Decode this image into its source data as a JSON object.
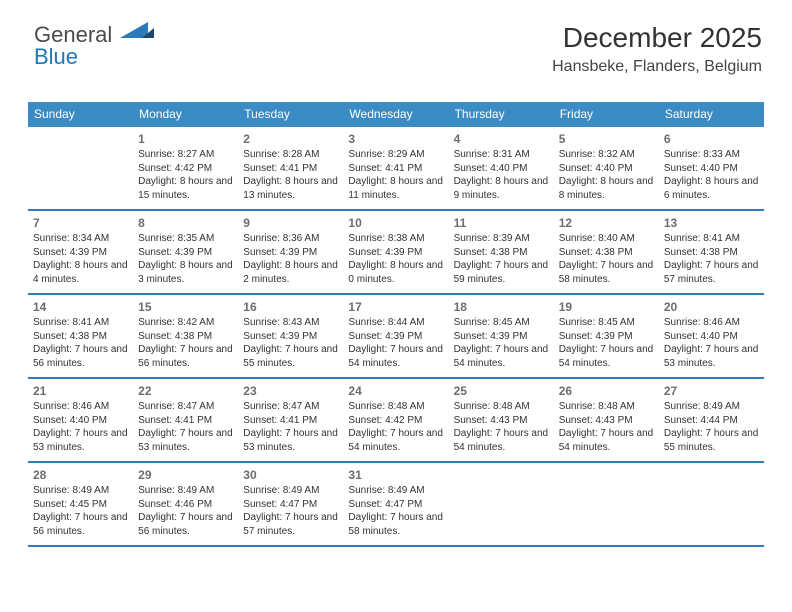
{
  "logo": {
    "part1": "General",
    "part2": "Blue"
  },
  "header": {
    "title": "December 2025",
    "location": "Hansbeke, Flanders, Belgium"
  },
  "colors": {
    "header_bg": "#3b8bc4",
    "header_text": "#ffffff",
    "row_border": "#2e7bb5",
    "daynum": "#6d6d6d",
    "body_text": "#333333",
    "logo_gray": "#5a5a5a",
    "logo_blue": "#2176b8"
  },
  "day_names": [
    "Sunday",
    "Monday",
    "Tuesday",
    "Wednesday",
    "Thursday",
    "Friday",
    "Saturday"
  ],
  "weeks": [
    [
      {
        "num": "",
        "sunrise": "",
        "sunset": "",
        "daylight": ""
      },
      {
        "num": "1",
        "sunrise": "Sunrise: 8:27 AM",
        "sunset": "Sunset: 4:42 PM",
        "daylight": "Daylight: 8 hours and 15 minutes."
      },
      {
        "num": "2",
        "sunrise": "Sunrise: 8:28 AM",
        "sunset": "Sunset: 4:41 PM",
        "daylight": "Daylight: 8 hours and 13 minutes."
      },
      {
        "num": "3",
        "sunrise": "Sunrise: 8:29 AM",
        "sunset": "Sunset: 4:41 PM",
        "daylight": "Daylight: 8 hours and 11 minutes."
      },
      {
        "num": "4",
        "sunrise": "Sunrise: 8:31 AM",
        "sunset": "Sunset: 4:40 PM",
        "daylight": "Daylight: 8 hours and 9 minutes."
      },
      {
        "num": "5",
        "sunrise": "Sunrise: 8:32 AM",
        "sunset": "Sunset: 4:40 PM",
        "daylight": "Daylight: 8 hours and 8 minutes."
      },
      {
        "num": "6",
        "sunrise": "Sunrise: 8:33 AM",
        "sunset": "Sunset: 4:40 PM",
        "daylight": "Daylight: 8 hours and 6 minutes."
      }
    ],
    [
      {
        "num": "7",
        "sunrise": "Sunrise: 8:34 AM",
        "sunset": "Sunset: 4:39 PM",
        "daylight": "Daylight: 8 hours and 4 minutes."
      },
      {
        "num": "8",
        "sunrise": "Sunrise: 8:35 AM",
        "sunset": "Sunset: 4:39 PM",
        "daylight": "Daylight: 8 hours and 3 minutes."
      },
      {
        "num": "9",
        "sunrise": "Sunrise: 8:36 AM",
        "sunset": "Sunset: 4:39 PM",
        "daylight": "Daylight: 8 hours and 2 minutes."
      },
      {
        "num": "10",
        "sunrise": "Sunrise: 8:38 AM",
        "sunset": "Sunset: 4:39 PM",
        "daylight": "Daylight: 8 hours and 0 minutes."
      },
      {
        "num": "11",
        "sunrise": "Sunrise: 8:39 AM",
        "sunset": "Sunset: 4:38 PM",
        "daylight": "Daylight: 7 hours and 59 minutes."
      },
      {
        "num": "12",
        "sunrise": "Sunrise: 8:40 AM",
        "sunset": "Sunset: 4:38 PM",
        "daylight": "Daylight: 7 hours and 58 minutes."
      },
      {
        "num": "13",
        "sunrise": "Sunrise: 8:41 AM",
        "sunset": "Sunset: 4:38 PM",
        "daylight": "Daylight: 7 hours and 57 minutes."
      }
    ],
    [
      {
        "num": "14",
        "sunrise": "Sunrise: 8:41 AM",
        "sunset": "Sunset: 4:38 PM",
        "daylight": "Daylight: 7 hours and 56 minutes."
      },
      {
        "num": "15",
        "sunrise": "Sunrise: 8:42 AM",
        "sunset": "Sunset: 4:38 PM",
        "daylight": "Daylight: 7 hours and 56 minutes."
      },
      {
        "num": "16",
        "sunrise": "Sunrise: 8:43 AM",
        "sunset": "Sunset: 4:39 PM",
        "daylight": "Daylight: 7 hours and 55 minutes."
      },
      {
        "num": "17",
        "sunrise": "Sunrise: 8:44 AM",
        "sunset": "Sunset: 4:39 PM",
        "daylight": "Daylight: 7 hours and 54 minutes."
      },
      {
        "num": "18",
        "sunrise": "Sunrise: 8:45 AM",
        "sunset": "Sunset: 4:39 PM",
        "daylight": "Daylight: 7 hours and 54 minutes."
      },
      {
        "num": "19",
        "sunrise": "Sunrise: 8:45 AM",
        "sunset": "Sunset: 4:39 PM",
        "daylight": "Daylight: 7 hours and 54 minutes."
      },
      {
        "num": "20",
        "sunrise": "Sunrise: 8:46 AM",
        "sunset": "Sunset: 4:40 PM",
        "daylight": "Daylight: 7 hours and 53 minutes."
      }
    ],
    [
      {
        "num": "21",
        "sunrise": "Sunrise: 8:46 AM",
        "sunset": "Sunset: 4:40 PM",
        "daylight": "Daylight: 7 hours and 53 minutes."
      },
      {
        "num": "22",
        "sunrise": "Sunrise: 8:47 AM",
        "sunset": "Sunset: 4:41 PM",
        "daylight": "Daylight: 7 hours and 53 minutes."
      },
      {
        "num": "23",
        "sunrise": "Sunrise: 8:47 AM",
        "sunset": "Sunset: 4:41 PM",
        "daylight": "Daylight: 7 hours and 53 minutes."
      },
      {
        "num": "24",
        "sunrise": "Sunrise: 8:48 AM",
        "sunset": "Sunset: 4:42 PM",
        "daylight": "Daylight: 7 hours and 54 minutes."
      },
      {
        "num": "25",
        "sunrise": "Sunrise: 8:48 AM",
        "sunset": "Sunset: 4:43 PM",
        "daylight": "Daylight: 7 hours and 54 minutes."
      },
      {
        "num": "26",
        "sunrise": "Sunrise: 8:48 AM",
        "sunset": "Sunset: 4:43 PM",
        "daylight": "Daylight: 7 hours and 54 minutes."
      },
      {
        "num": "27",
        "sunrise": "Sunrise: 8:49 AM",
        "sunset": "Sunset: 4:44 PM",
        "daylight": "Daylight: 7 hours and 55 minutes."
      }
    ],
    [
      {
        "num": "28",
        "sunrise": "Sunrise: 8:49 AM",
        "sunset": "Sunset: 4:45 PM",
        "daylight": "Daylight: 7 hours and 56 minutes."
      },
      {
        "num": "29",
        "sunrise": "Sunrise: 8:49 AM",
        "sunset": "Sunset: 4:46 PM",
        "daylight": "Daylight: 7 hours and 56 minutes."
      },
      {
        "num": "30",
        "sunrise": "Sunrise: 8:49 AM",
        "sunset": "Sunset: 4:47 PM",
        "daylight": "Daylight: 7 hours and 57 minutes."
      },
      {
        "num": "31",
        "sunrise": "Sunrise: 8:49 AM",
        "sunset": "Sunset: 4:47 PM",
        "daylight": "Daylight: 7 hours and 58 minutes."
      },
      {
        "num": "",
        "sunrise": "",
        "sunset": "",
        "daylight": ""
      },
      {
        "num": "",
        "sunrise": "",
        "sunset": "",
        "daylight": ""
      },
      {
        "num": "",
        "sunrise": "",
        "sunset": "",
        "daylight": ""
      }
    ]
  ]
}
